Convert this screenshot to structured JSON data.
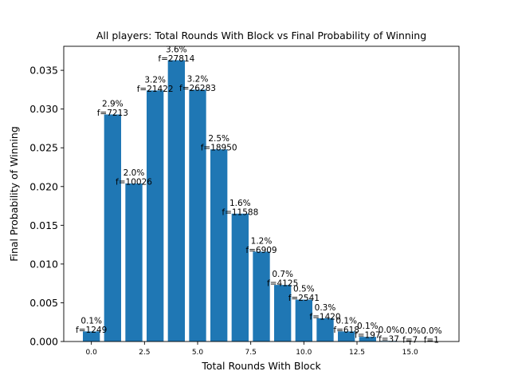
{
  "chart_data": {
    "type": "bar",
    "title": "All players: Total Rounds With Block vs Final Probability of Winning",
    "xlabel": "Total Rounds With Block",
    "ylabel": "Final Probability of Winning",
    "xlim": [
      -1.3,
      17.3
    ],
    "ylim": [
      0,
      0.0381
    ],
    "bar_width": 0.8,
    "bar_color": "#1f77b4",
    "grid": false,
    "x": [
      0,
      1,
      2,
      3,
      4,
      5,
      6,
      7,
      8,
      9,
      10,
      11,
      12,
      13,
      14,
      15,
      16
    ],
    "values": [
      0.0013,
      0.0293,
      0.0204,
      0.0324,
      0.0363,
      0.0325,
      0.0248,
      0.0165,
      0.0116,
      0.0073,
      0.0054,
      0.003,
      0.0013,
      0.0006,
      8e-05,
      2e-05,
      5e-06
    ],
    "percent_labels": [
      "0.1%",
      "2.9%",
      "2.0%",
      "3.2%",
      "3.6%",
      "3.2%",
      "2.5%",
      "1.6%",
      "1.2%",
      "0.7%",
      "0.5%",
      "0.3%",
      "0.1%",
      "0.1%",
      "0.0%",
      "0.0%",
      "0.0%"
    ],
    "freq_labels": [
      "f=1249",
      "f=7213",
      "f=10026",
      "f=21422",
      "f=27814",
      "f=26283",
      "f=18950",
      "f=11588",
      "f=6909",
      "f=4125",
      "f=2541",
      "f=1420",
      "f=618",
      "f=197",
      "f=37",
      "f=7",
      "f=1"
    ],
    "xticks": [
      0,
      2.5,
      5,
      7.5,
      10,
      12.5,
      15
    ],
    "xtick_labels": [
      "0.0",
      "2.5",
      "5.0",
      "7.5",
      "10.0",
      "12.5",
      "15.0"
    ],
    "yticks": [
      0,
      0.005,
      0.01,
      0.015,
      0.02,
      0.025,
      0.03,
      0.035
    ],
    "ytick_labels": [
      "0.000",
      "0.005",
      "0.010",
      "0.015",
      "0.020",
      "0.025",
      "0.030",
      "0.035"
    ]
  }
}
